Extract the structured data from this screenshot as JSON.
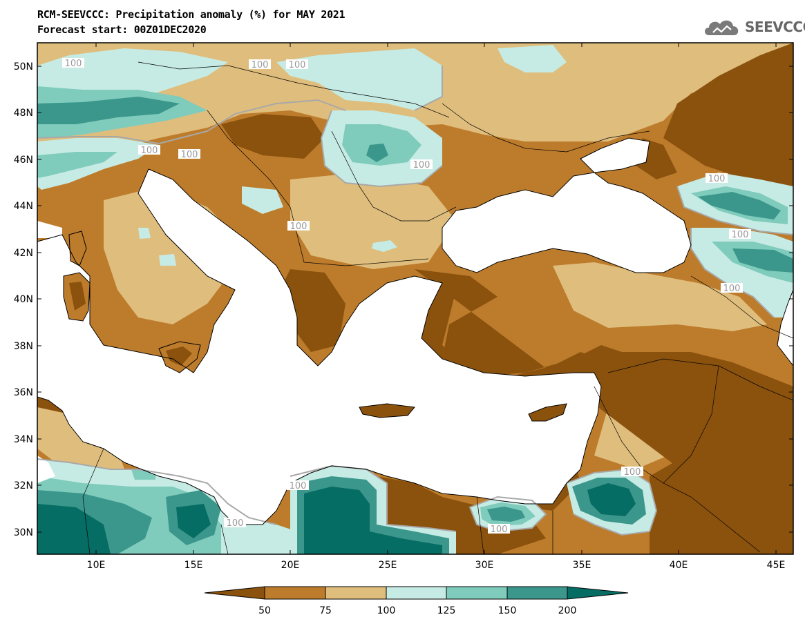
{
  "title": {
    "line1": "RCM-SEEVCCC: Precipitation anomaly (%) for MAY 2021",
    "line2": "Forecast start: 00Z01DEC2020"
  },
  "logo": {
    "text": "SEEVCCC",
    "icon": "cloud-icon"
  },
  "map": {
    "lat_labels": [
      "50N",
      "48N",
      "46N",
      "44N",
      "42N",
      "40N",
      "38N",
      "36N",
      "34N",
      "32N",
      "30N"
    ],
    "lon_labels": [
      "10E",
      "15E",
      "20E",
      "25E",
      "30E",
      "35E",
      "40E",
      "45E"
    ],
    "contour_labels": [
      "100",
      "100",
      "100",
      "100",
      "100",
      "100",
      "100",
      "100",
      "100",
      "100",
      "100",
      "100",
      "100",
      "100"
    ]
  },
  "colorbar": {
    "ticks": [
      "50",
      "75",
      "100",
      "125",
      "150",
      "200"
    ],
    "colors": [
      "#8b520e",
      "#bd7c2c",
      "#dfbd7c",
      "#c6ebe4",
      "#7fcbbc",
      "#3b968c",
      "#066d64"
    ]
  },
  "palette": {
    "very_dry": "#8b520e",
    "dry": "#bd7c2c",
    "slightly_dry": "#dfbd7c",
    "slightly_wet": "#c6ebe4",
    "wet": "#7fcbbc",
    "very_wet": "#3b968c",
    "extreme_wet": "#066d64"
  }
}
